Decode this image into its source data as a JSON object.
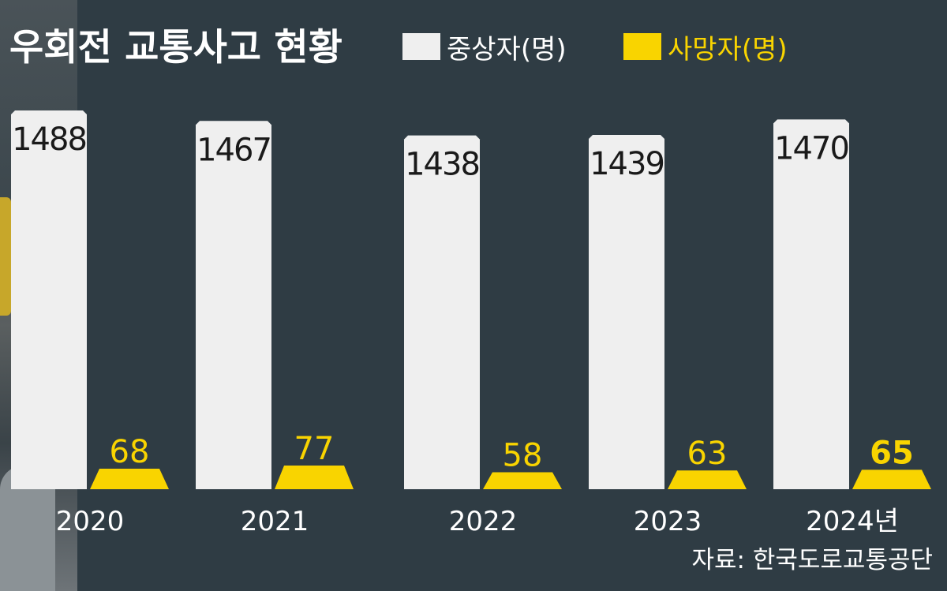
{
  "colors": {
    "background": "#2f3c44",
    "injured_bar": "#efefef",
    "death_bar": "#f9d400",
    "title_text": "#ffffff",
    "death_label": "#f9d400",
    "injured_label": "#1a1a1a"
  },
  "chart_data": {
    "type": "bar",
    "title": "우회전 교통사고 현황",
    "categories": [
      "2020",
      "2021",
      "2022",
      "2023",
      "2024년"
    ],
    "series": [
      {
        "name": "중상자(명)",
        "values": [
          1488,
          1467,
          1438,
          1439,
          1470
        ]
      },
      {
        "name": "사망자(명)",
        "values": [
          68,
          77,
          58,
          63,
          65
        ]
      }
    ],
    "source": "자료: 한국도로교통공단",
    "legend": "top"
  }
}
